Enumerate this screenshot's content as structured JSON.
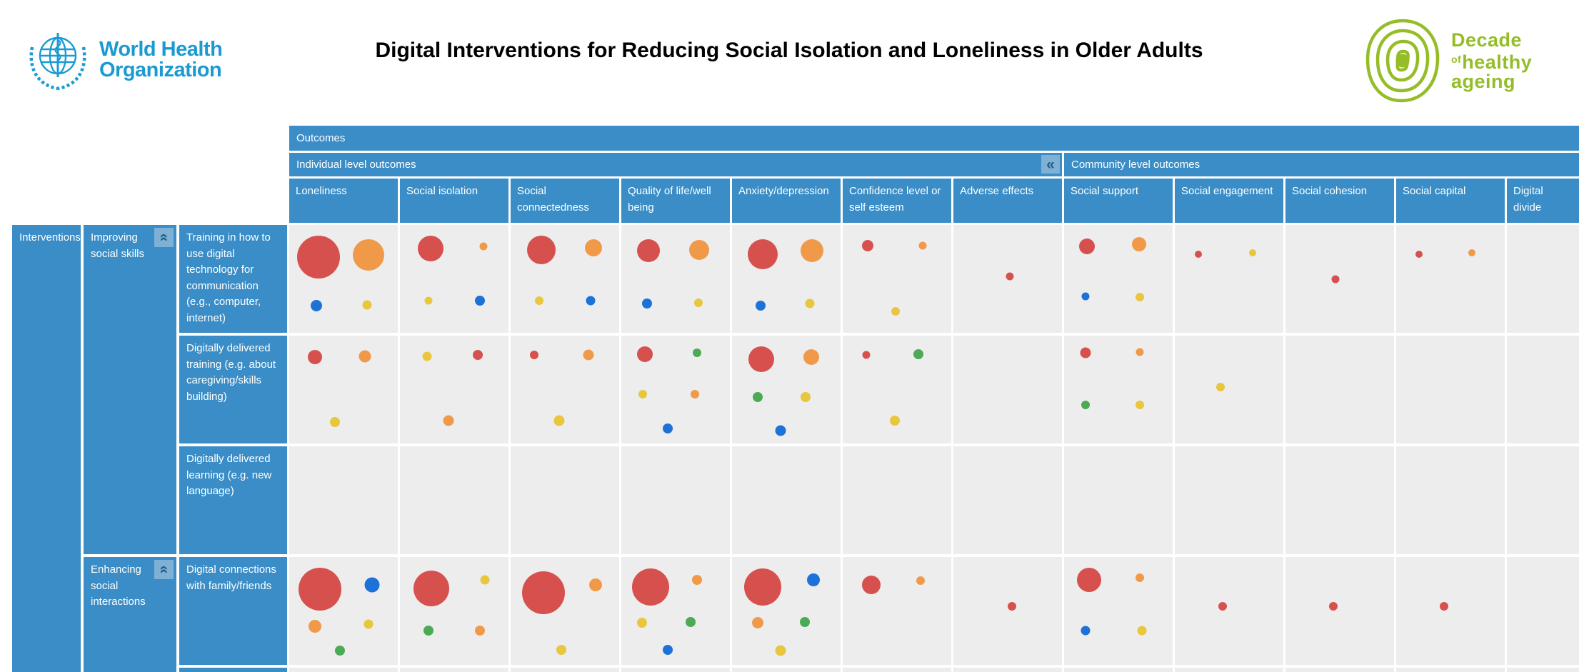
{
  "header": {
    "who": {
      "line1": "World Health",
      "line2": "Organization"
    },
    "title": "Digital Interventions for Reducing Social Isolation and Loneliness in Older Adults",
    "decade": {
      "word1": "Decade",
      "of": "of",
      "word2": "healthy",
      "word3": "ageing"
    }
  },
  "colors": {
    "header_blue": "#3a8dc6",
    "cell_bg": "#ededed",
    "collapse_button_bg": "#7fb1d6",
    "collapse_glyph": "#215e82",
    "who_blue": "#1b9ad2",
    "decade_green": "#94bd27",
    "bubble": {
      "red": "#d6514d",
      "orange": "#f09a49",
      "yellow": "#e8c63e",
      "blue": "#1d72d8",
      "green": "#4caa54"
    }
  },
  "chart_data": {
    "type": "bubble-matrix",
    "title": "Digital Interventions for Reducing Social Isolation and Loneliness in Older Adults",
    "corner_label": "Outcomes",
    "row_axis_label": "Interventions",
    "column_groups": [
      {
        "label": "Individual level outcomes",
        "collapse_icon": "chevron-double-left-icon",
        "columns": 7
      },
      {
        "label": "Community level outcomes",
        "columns": 5
      }
    ],
    "columns": [
      "Loneliness",
      "Social isolation",
      "Social connectedness",
      "Quality of life/well being",
      "Anxiety/depression",
      "Confidence level or self esteem",
      "Adverse effects",
      "Social support",
      "Social engagement",
      "Social cohesion",
      "Social capital",
      "Digital divide"
    ],
    "row_groups": [
      {
        "label": "Improving social skills",
        "collapse_icon": "chevron-double-up-icon",
        "rows": [
          0,
          1,
          2
        ]
      },
      {
        "label": "Enhancing social interactions",
        "collapse_icon": "chevron-double-up-icon",
        "rows": [
          3
        ]
      }
    ],
    "rows": [
      "Training in how to use digital technology for communication (e.g., computer, internet)",
      "Digitally delivered training (e.g. about caregiving/skills building)",
      "Digitally delivered learning (e.g. new language)",
      "Digital connections with family/friends"
    ],
    "cells": [
      [
        [
          {
            "c": "red",
            "r": 30,
            "x": 27,
            "y": 30
          },
          {
            "c": "orange",
            "r": 22,
            "x": 73,
            "y": 28
          },
          {
            "c": "blue",
            "r": 8,
            "x": 25,
            "y": 75
          },
          {
            "c": "yellow",
            "r": 6.5,
            "x": 72,
            "y": 74
          }
        ],
        [
          {
            "c": "red",
            "r": 18,
            "x": 28,
            "y": 22
          },
          {
            "c": "orange",
            "r": 5.5,
            "x": 77,
            "y": 20
          },
          {
            "c": "yellow",
            "r": 5.5,
            "x": 26,
            "y": 70
          },
          {
            "c": "blue",
            "r": 7,
            "x": 74,
            "y": 70
          }
        ],
        [
          {
            "c": "red",
            "r": 20,
            "x": 28,
            "y": 23
          },
          {
            "c": "orange",
            "r": 12,
            "x": 76,
            "y": 21
          },
          {
            "c": "yellow",
            "r": 6,
            "x": 26,
            "y": 70
          },
          {
            "c": "blue",
            "r": 6.5,
            "x": 74,
            "y": 70
          }
        ],
        [
          {
            "c": "red",
            "r": 16,
            "x": 25,
            "y": 24
          },
          {
            "c": "orange",
            "r": 14,
            "x": 72,
            "y": 23
          },
          {
            "c": "blue",
            "r": 7,
            "x": 24,
            "y": 73
          },
          {
            "c": "yellow",
            "r": 6,
            "x": 71,
            "y": 72
          }
        ],
        [
          {
            "c": "red",
            "r": 21,
            "x": 28,
            "y": 27
          },
          {
            "c": "orange",
            "r": 16,
            "x": 74,
            "y": 24
          },
          {
            "c": "blue",
            "r": 7,
            "x": 26,
            "y": 75
          },
          {
            "c": "yellow",
            "r": 6.5,
            "x": 72,
            "y": 73
          }
        ],
        [
          {
            "c": "red",
            "r": 8,
            "x": 23,
            "y": 19
          },
          {
            "c": "orange",
            "r": 5.5,
            "x": 74,
            "y": 19
          },
          {
            "c": "yellow",
            "r": 6,
            "x": 49,
            "y": 80
          }
        ],
        [
          {
            "c": "red",
            "r": 5.5,
            "x": 52,
            "y": 48
          }
        ],
        [
          {
            "c": "red",
            "r": 11,
            "x": 21,
            "y": 20
          },
          {
            "c": "orange",
            "r": 10,
            "x": 69,
            "y": 18
          },
          {
            "c": "blue",
            "r": 5.5,
            "x": 20,
            "y": 66
          },
          {
            "c": "yellow",
            "r": 6,
            "x": 70,
            "y": 67
          }
        ],
        [
          {
            "c": "red",
            "r": 5,
            "x": 22,
            "y": 27
          },
          {
            "c": "yellow",
            "r": 5,
            "x": 72,
            "y": 26
          }
        ],
        [
          {
            "c": "red",
            "r": 5.5,
            "x": 46,
            "y": 50
          }
        ],
        [
          {
            "c": "red",
            "r": 5,
            "x": 21,
            "y": 27
          },
          {
            "c": "orange",
            "r": 5,
            "x": 70,
            "y": 26
          }
        ],
        []
      ],
      [
        [
          {
            "c": "red",
            "r": 10,
            "x": 24,
            "y": 20
          },
          {
            "c": "orange",
            "r": 8.5,
            "x": 70,
            "y": 19
          },
          {
            "c": "yellow",
            "r": 7,
            "x": 42,
            "y": 80
          }
        ],
        [
          {
            "c": "yellow",
            "r": 6.5,
            "x": 25,
            "y": 19
          },
          {
            "c": "red",
            "r": 7,
            "x": 72,
            "y": 18
          },
          {
            "c": "orange",
            "r": 7.5,
            "x": 45,
            "y": 79
          }
        ],
        [
          {
            "c": "red",
            "r": 6,
            "x": 22,
            "y": 18
          },
          {
            "c": "orange",
            "r": 7.5,
            "x": 72,
            "y": 18
          },
          {
            "c": "yellow",
            "r": 7.5,
            "x": 45,
            "y": 79
          }
        ],
        [
          {
            "c": "red",
            "r": 11,
            "x": 22,
            "y": 17
          },
          {
            "c": "green",
            "r": 6,
            "x": 70,
            "y": 16
          },
          {
            "c": "yellow",
            "r": 6,
            "x": 20,
            "y": 54
          },
          {
            "c": "orange",
            "r": 6,
            "x": 68,
            "y": 54
          },
          {
            "c": "blue",
            "r": 7,
            "x": 43,
            "y": 86
          }
        ],
        [
          {
            "c": "red",
            "r": 18,
            "x": 27,
            "y": 22
          },
          {
            "c": "orange",
            "r": 11,
            "x": 73,
            "y": 20
          },
          {
            "c": "green",
            "r": 7,
            "x": 24,
            "y": 57
          },
          {
            "c": "yellow",
            "r": 7,
            "x": 68,
            "y": 57
          },
          {
            "c": "blue",
            "r": 7.5,
            "x": 45,
            "y": 88
          }
        ],
        [
          {
            "c": "red",
            "r": 5.5,
            "x": 22,
            "y": 18
          },
          {
            "c": "green",
            "r": 7,
            "x": 70,
            "y": 17
          },
          {
            "c": "yellow",
            "r": 7,
            "x": 48,
            "y": 79
          }
        ],
        [],
        [
          {
            "c": "red",
            "r": 7.5,
            "x": 20,
            "y": 16
          },
          {
            "c": "orange",
            "r": 5.5,
            "x": 70,
            "y": 15
          },
          {
            "c": "green",
            "r": 6,
            "x": 20,
            "y": 64
          },
          {
            "c": "yellow",
            "r": 6,
            "x": 70,
            "y": 64
          }
        ],
        [
          {
            "c": "yellow",
            "r": 6,
            "x": 42,
            "y": 48
          }
        ],
        [],
        [],
        []
      ],
      [
        [],
        [],
        [],
        [],
        [],
        [],
        [],
        [],
        [],
        [],
        [],
        []
      ],
      [
        [
          {
            "c": "red",
            "r": 30,
            "x": 28,
            "y": 30
          },
          {
            "c": "blue",
            "r": 10.5,
            "x": 76,
            "y": 26
          },
          {
            "c": "orange",
            "r": 9,
            "x": 24,
            "y": 64
          },
          {
            "c": "yellow",
            "r": 6.5,
            "x": 73,
            "y": 62
          },
          {
            "c": "green",
            "r": 7,
            "x": 47,
            "y": 87
          }
        ],
        [
          {
            "c": "red",
            "r": 25,
            "x": 29,
            "y": 29
          },
          {
            "c": "yellow",
            "r": 6.5,
            "x": 78,
            "y": 21
          },
          {
            "c": "green",
            "r": 7,
            "x": 26,
            "y": 68
          },
          {
            "c": "orange",
            "r": 7,
            "x": 74,
            "y": 68
          }
        ],
        [
          {
            "c": "red",
            "r": 30,
            "x": 30,
            "y": 33
          },
          {
            "c": "orange",
            "r": 9,
            "x": 78,
            "y": 26
          },
          {
            "c": "yellow",
            "r": 7,
            "x": 47,
            "y": 86
          }
        ],
        [
          {
            "c": "red",
            "r": 26,
            "x": 27,
            "y": 28
          },
          {
            "c": "orange",
            "r": 7,
            "x": 70,
            "y": 21
          },
          {
            "c": "yellow",
            "r": 7,
            "x": 19,
            "y": 61
          },
          {
            "c": "green",
            "r": 7,
            "x": 64,
            "y": 60
          },
          {
            "c": "blue",
            "r": 7,
            "x": 43,
            "y": 86
          }
        ],
        [
          {
            "c": "red",
            "r": 26,
            "x": 28,
            "y": 28
          },
          {
            "c": "blue",
            "r": 9,
            "x": 75,
            "y": 21
          },
          {
            "c": "orange",
            "r": 8,
            "x": 24,
            "y": 61
          },
          {
            "c": "green",
            "r": 7,
            "x": 67,
            "y": 60
          },
          {
            "c": "yellow",
            "r": 7.5,
            "x": 45,
            "y": 87
          }
        ],
        [
          {
            "c": "red",
            "r": 13,
            "x": 26,
            "y": 26
          },
          {
            "c": "orange",
            "r": 6,
            "x": 72,
            "y": 22
          }
        ],
        [
          {
            "c": "red",
            "r": 6,
            "x": 54,
            "y": 46
          }
        ],
        [
          {
            "c": "red",
            "r": 17,
            "x": 23,
            "y": 21
          },
          {
            "c": "orange",
            "r": 6,
            "x": 70,
            "y": 19
          },
          {
            "c": "blue",
            "r": 6.5,
            "x": 20,
            "y": 68
          },
          {
            "c": "yellow",
            "r": 6.5,
            "x": 72,
            "y": 68
          }
        ],
        [
          {
            "c": "red",
            "r": 6,
            "x": 44,
            "y": 46
          }
        ],
        [
          {
            "c": "red",
            "r": 6,
            "x": 44,
            "y": 46
          }
        ],
        [
          {
            "c": "red",
            "r": 6,
            "x": 44,
            "y": 46
          }
        ],
        []
      ]
    ]
  }
}
